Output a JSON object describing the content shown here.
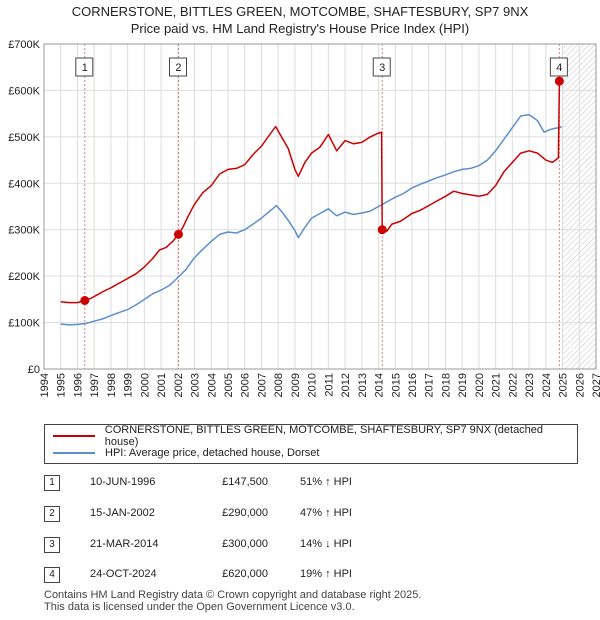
{
  "chart_data": {
    "type": "line",
    "title": "CORNERSTONE, BITTLES GREEN, MOTCOMBE, SHAFTESBURY, SP7 9NX",
    "subtitle": "Price paid vs. HM Land Registry's House Price Index (HPI)",
    "xlim": [
      1994,
      2027
    ],
    "ylim": [
      0,
      700000
    ],
    "x_ticks": [
      "1994",
      "1995",
      "1996",
      "1997",
      "1998",
      "1999",
      "2000",
      "2001",
      "2002",
      "2003",
      "2004",
      "2005",
      "2006",
      "2007",
      "2008",
      "2009",
      "2010",
      "2011",
      "2012",
      "2013",
      "2014",
      "2015",
      "2016",
      "2017",
      "2018",
      "2019",
      "2020",
      "2021",
      "2022",
      "2023",
      "2024",
      "2025",
      "2026",
      "2027"
    ],
    "y_ticks": [
      {
        "value": 0,
        "label": "£0"
      },
      {
        "value": 100000,
        "label": "£100K"
      },
      {
        "value": 200000,
        "label": "£200K"
      },
      {
        "value": 300000,
        "label": "£300K"
      },
      {
        "value": 400000,
        "label": "£400K"
      },
      {
        "value": 500000,
        "label": "£500K"
      },
      {
        "value": 600000,
        "label": "£600K"
      },
      {
        "value": 700000,
        "label": "£700K"
      }
    ],
    "data_start": 1995.0,
    "hatch_from": 2025.0,
    "series": [
      {
        "name": "CORNERSTONE, BITTLES GREEN, MOTCOMBE, SHAFTESBURY, SP7 9NX (detached house)",
        "color": "#cc0000",
        "points": [
          [
            1995.0,
            145000
          ],
          [
            1995.5,
            143000
          ],
          [
            1996.0,
            143000
          ],
          [
            1996.44,
            147500
          ],
          [
            1996.8,
            152000
          ],
          [
            1997.2,
            160000
          ],
          [
            1997.6,
            168000
          ],
          [
            1998.0,
            175000
          ],
          [
            1998.5,
            185000
          ],
          [
            1999.0,
            195000
          ],
          [
            1999.5,
            205000
          ],
          [
            2000.0,
            220000
          ],
          [
            2000.5,
            238000
          ],
          [
            2000.9,
            256000
          ],
          [
            2001.3,
            262000
          ],
          [
            2001.7,
            275000
          ],
          [
            2002.04,
            290000
          ],
          [
            2002.3,
            305000
          ],
          [
            2002.6,
            328000
          ],
          [
            2003.0,
            355000
          ],
          [
            2003.5,
            380000
          ],
          [
            2004.0,
            395000
          ],
          [
            2004.5,
            420000
          ],
          [
            2005.0,
            430000
          ],
          [
            2005.5,
            432000
          ],
          [
            2006.0,
            440000
          ],
          [
            2006.5,
            462000
          ],
          [
            2007.0,
            480000
          ],
          [
            2007.5,
            505000
          ],
          [
            2007.85,
            522000
          ],
          [
            2008.2,
            500000
          ],
          [
            2008.6,
            475000
          ],
          [
            2009.0,
            430000
          ],
          [
            2009.2,
            415000
          ],
          [
            2009.6,
            445000
          ],
          [
            2010.0,
            465000
          ],
          [
            2010.5,
            478000
          ],
          [
            2011.0,
            505000
          ],
          [
            2011.5,
            470000
          ],
          [
            2012.0,
            492000
          ],
          [
            2012.5,
            485000
          ],
          [
            2013.0,
            488000
          ],
          [
            2013.5,
            500000
          ],
          [
            2014.0,
            508000
          ],
          [
            2014.18,
            510000
          ],
          [
            2014.22,
            300000
          ],
          [
            2014.5,
            297000
          ],
          [
            2014.8,
            312000
          ],
          [
            2015.3,
            318000
          ],
          [
            2016.0,
            335000
          ],
          [
            2016.5,
            342000
          ],
          [
            2017.0,
            352000
          ],
          [
            2017.5,
            362000
          ],
          [
            2018.0,
            372000
          ],
          [
            2018.5,
            383000
          ],
          [
            2019.0,
            378000
          ],
          [
            2019.5,
            375000
          ],
          [
            2020.0,
            372000
          ],
          [
            2020.5,
            376000
          ],
          [
            2021.0,
            395000
          ],
          [
            2021.5,
            425000
          ],
          [
            2022.0,
            445000
          ],
          [
            2022.5,
            465000
          ],
          [
            2023.0,
            470000
          ],
          [
            2023.5,
            465000
          ],
          [
            2024.0,
            450000
          ],
          [
            2024.4,
            445000
          ],
          [
            2024.75,
            455000
          ],
          [
            2024.81,
            620000
          ],
          [
            2024.95,
            625000
          ]
        ]
      },
      {
        "name": "HPI: Average price, detached house, Dorset",
        "color": "#5b8fcc",
        "points": [
          [
            1995.0,
            97000
          ],
          [
            1995.5,
            95000
          ],
          [
            1996.0,
            96000
          ],
          [
            1996.5,
            98000
          ],
          [
            1997.0,
            103000
          ],
          [
            1997.5,
            108000
          ],
          [
            1998.0,
            115000
          ],
          [
            1998.5,
            122000
          ],
          [
            1999.0,
            128000
          ],
          [
            1999.5,
            138000
          ],
          [
            2000.0,
            150000
          ],
          [
            2000.5,
            162000
          ],
          [
            2001.0,
            170000
          ],
          [
            2001.5,
            180000
          ],
          [
            2002.0,
            197000
          ],
          [
            2002.5,
            215000
          ],
          [
            2003.0,
            240000
          ],
          [
            2003.5,
            258000
          ],
          [
            2004.0,
            275000
          ],
          [
            2004.5,
            290000
          ],
          [
            2005.0,
            295000
          ],
          [
            2005.5,
            293000
          ],
          [
            2006.0,
            300000
          ],
          [
            2006.5,
            312000
          ],
          [
            2007.0,
            325000
          ],
          [
            2007.5,
            340000
          ],
          [
            2007.9,
            352000
          ],
          [
            2008.3,
            335000
          ],
          [
            2008.7,
            315000
          ],
          [
            2009.0,
            298000
          ],
          [
            2009.2,
            283000
          ],
          [
            2009.6,
            305000
          ],
          [
            2010.0,
            325000
          ],
          [
            2010.5,
            335000
          ],
          [
            2011.0,
            345000
          ],
          [
            2011.5,
            330000
          ],
          [
            2012.0,
            338000
          ],
          [
            2012.5,
            333000
          ],
          [
            2013.0,
            336000
          ],
          [
            2013.5,
            340000
          ],
          [
            2014.0,
            350000
          ],
          [
            2014.5,
            360000
          ],
          [
            2015.0,
            370000
          ],
          [
            2015.5,
            378000
          ],
          [
            2016.0,
            390000
          ],
          [
            2016.5,
            398000
          ],
          [
            2017.0,
            405000
          ],
          [
            2017.5,
            412000
          ],
          [
            2018.0,
            418000
          ],
          [
            2018.5,
            425000
          ],
          [
            2019.0,
            430000
          ],
          [
            2019.5,
            432000
          ],
          [
            2020.0,
            438000
          ],
          [
            2020.5,
            450000
          ],
          [
            2021.0,
            470000
          ],
          [
            2021.5,
            495000
          ],
          [
            2022.0,
            520000
          ],
          [
            2022.5,
            545000
          ],
          [
            2023.0,
            548000
          ],
          [
            2023.5,
            535000
          ],
          [
            2023.9,
            510000
          ],
          [
            2024.2,
            515000
          ],
          [
            2024.5,
            518000
          ],
          [
            2024.8,
            520000
          ],
          [
            2024.95,
            522000
          ]
        ]
      }
    ],
    "sales": [
      {
        "num": "1",
        "x": 1996.44,
        "price": 147500,
        "date": "10-JUN-1996",
        "price_label": "£147,500",
        "hpi": "51% ↑ HPI"
      },
      {
        "num": "2",
        "x": 2002.04,
        "price": 290000,
        "date": "15-JAN-2002",
        "price_label": "£290,000",
        "hpi": "47% ↑ HPI"
      },
      {
        "num": "3",
        "x": 2014.22,
        "price": 300000,
        "date": "21-MAR-2014",
        "price_label": "£300,000",
        "hpi": "14% ↓ HPI"
      },
      {
        "num": "4",
        "x": 2024.81,
        "price": 620000,
        "date": "24-OCT-2024",
        "price_label": "£620,000",
        "hpi": "19% ↑ HPI"
      }
    ]
  },
  "footer": {
    "line1": "Contains HM Land Registry data © Crown copyright and database right 2025.",
    "line2": "This data is licensed under the Open Government Licence v3.0."
  }
}
